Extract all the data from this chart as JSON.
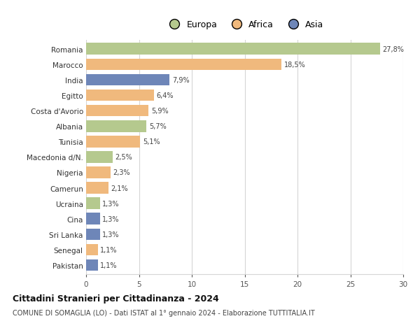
{
  "countries": [
    "Romania",
    "Marocco",
    "India",
    "Egitto",
    "Costa d'Avorio",
    "Albania",
    "Tunisia",
    "Macedonia d/N.",
    "Nigeria",
    "Camerun",
    "Ucraina",
    "Cina",
    "Sri Lanka",
    "Senegal",
    "Pakistan"
  ],
  "values": [
    27.8,
    18.5,
    7.9,
    6.4,
    5.9,
    5.7,
    5.1,
    2.5,
    2.3,
    2.1,
    1.3,
    1.3,
    1.3,
    1.1,
    1.1
  ],
  "labels": [
    "27,8%",
    "18,5%",
    "7,9%",
    "6,4%",
    "5,9%",
    "5,7%",
    "5,1%",
    "2,5%",
    "2,3%",
    "2,1%",
    "1,3%",
    "1,3%",
    "1,3%",
    "1,1%",
    "1,1%"
  ],
  "continents": [
    "Europa",
    "Africa",
    "Asia",
    "Africa",
    "Africa",
    "Europa",
    "Africa",
    "Europa",
    "Africa",
    "Africa",
    "Europa",
    "Asia",
    "Asia",
    "Africa",
    "Asia"
  ],
  "colors": {
    "Europa": "#b5c98e",
    "Africa": "#f0b97d",
    "Asia": "#6e86b8"
  },
  "legend_labels": [
    "Europa",
    "Africa",
    "Asia"
  ],
  "title": "Cittadini Stranieri per Cittadinanza - 2024",
  "subtitle": "COMUNE DI SOMAGLIA (LO) - Dati ISTAT al 1° gennaio 2024 - Elaborazione TUTTITALIA.IT",
  "xlim": [
    0,
    30
  ],
  "xticks": [
    0,
    5,
    10,
    15,
    20,
    25,
    30
  ],
  "bg_color": "#ffffff",
  "grid_color": "#d5d5d5",
  "bar_height": 0.75
}
